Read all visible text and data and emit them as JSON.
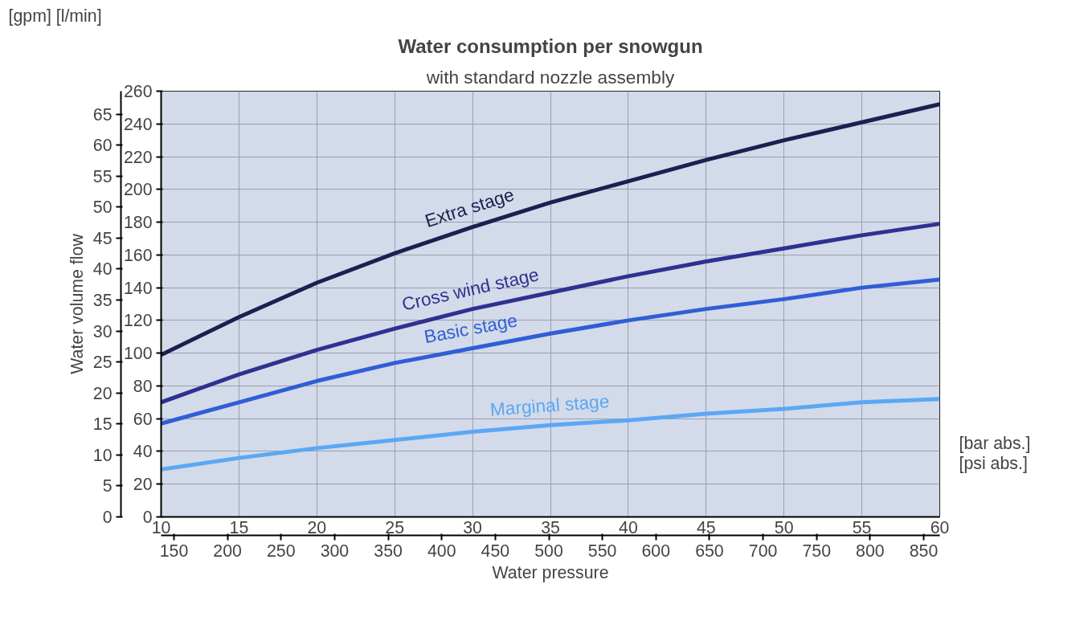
{
  "chart_data": {
    "type": "line",
    "title": "Water consumption per snowgun",
    "subtitle": "with standard nozzle assembly",
    "y2label": "Water volume flow",
    "x2label": "Water pressure",
    "annotations": [
      "[gpm] [l/min]",
      "[bar abs.]",
      "[psi abs.]"
    ],
    "x": [
      10,
      15,
      20,
      25,
      30,
      35,
      40,
      45,
      50,
      55,
      60
    ],
    "xlim": [
      10,
      60
    ],
    "xticks": [
      10,
      15,
      20,
      25,
      30,
      35,
      40,
      45,
      50,
      55,
      60
    ],
    "x2lim": [
      138,
      865
    ],
    "x2ticks": [
      150,
      200,
      250,
      300,
      350,
      400,
      450,
      500,
      550,
      600,
      650,
      700,
      750,
      800,
      850
    ],
    "ylim": [
      0,
      260
    ],
    "yticks": [
      0,
      20,
      40,
      60,
      80,
      100,
      120,
      140,
      160,
      180,
      200,
      220,
      240,
      260
    ],
    "y2lim": [
      0,
      68.7
    ],
    "y2ticks": [
      0,
      5,
      10,
      15,
      20,
      25,
      30,
      35,
      40,
      45,
      50,
      55,
      60,
      65
    ],
    "grid": true,
    "marker": "none",
    "line_style": "solid",
    "series": [
      {
        "name": "Extra stage",
        "color": "#1c1f4f",
        "values": [
          99,
          122,
          143,
          161,
          177,
          192,
          205,
          218,
          230,
          241,
          252
        ]
      },
      {
        "name": "Cross wind stage",
        "color": "#2e3191",
        "values": [
          70,
          87,
          102,
          115,
          127,
          137,
          147,
          156,
          164,
          172,
          179
        ]
      },
      {
        "name": "Basic stage",
        "color": "#2f5ed6",
        "values": [
          57,
          70,
          83,
          94,
          103,
          112,
          120,
          127,
          133,
          140,
          145
        ]
      },
      {
        "name": "Marginal stage",
        "color": "#5aa8f5",
        "values": [
          29,
          36,
          42,
          47,
          52,
          56,
          59,
          63,
          66,
          70,
          72
        ]
      }
    ]
  }
}
